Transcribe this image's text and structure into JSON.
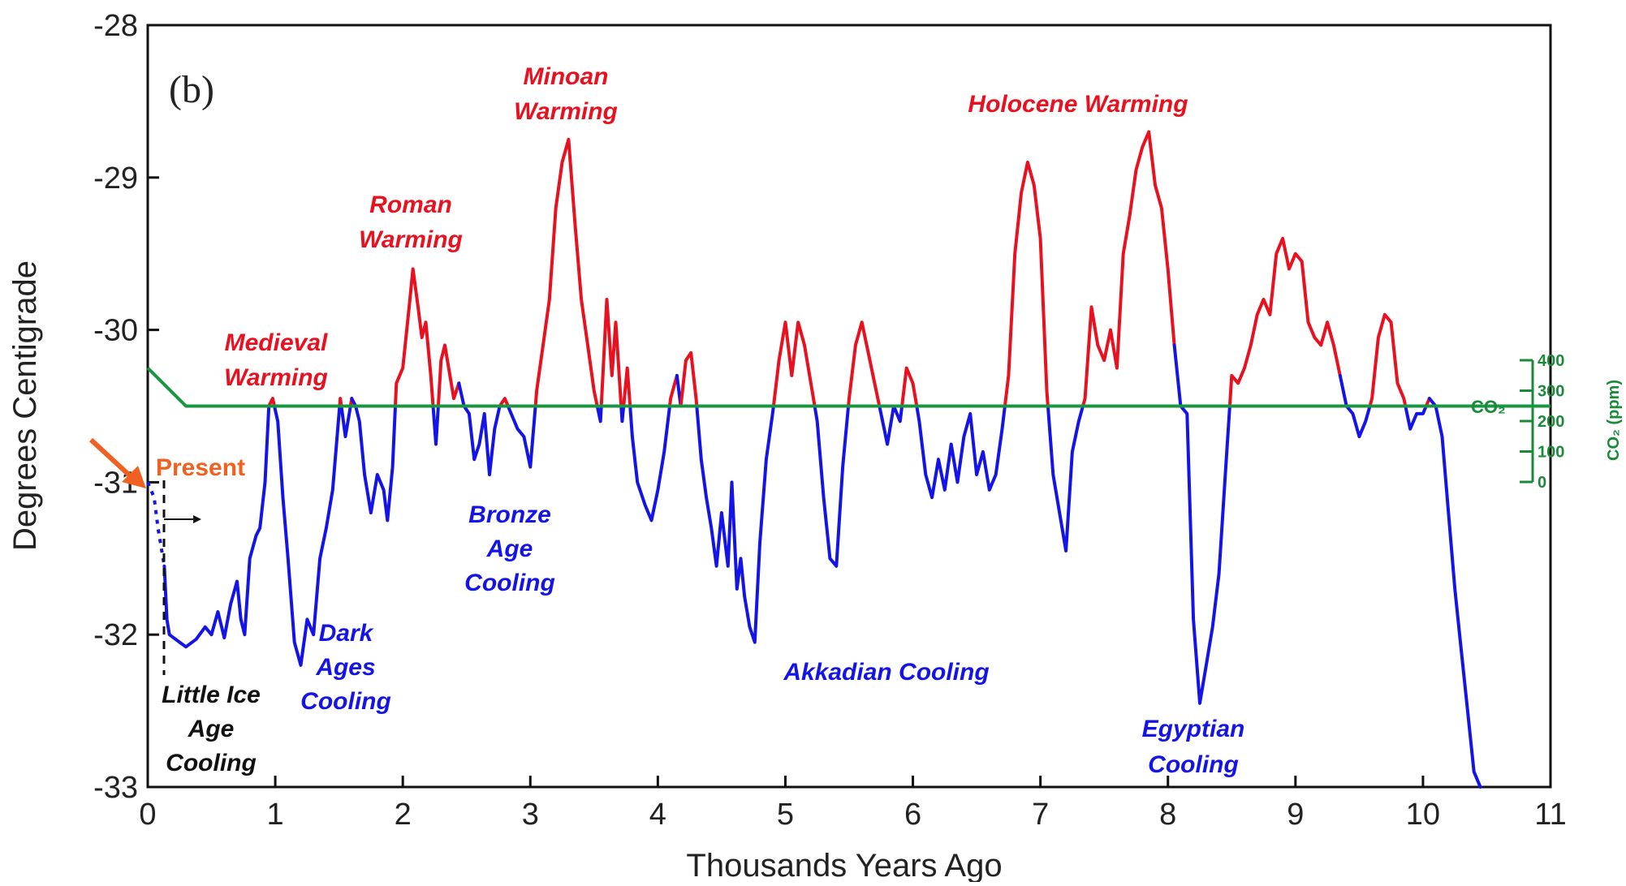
{
  "chart_data": {
    "type": "line",
    "panel_label": "(b)",
    "xlabel": "Thousands Years Ago",
    "ylabel": "Degrees Centigrade",
    "xlim": [
      0,
      11
    ],
    "ylim": [
      -33,
      -28
    ],
    "x_ticks": [
      "0",
      "1",
      "2",
      "3",
      "4",
      "5",
      "6",
      "7",
      "8",
      "9",
      "10",
      "11"
    ],
    "y_ticks": [
      "-28",
      "-29",
      "-30",
      "-31",
      "-32",
      "-33"
    ],
    "threshold": -30.5,
    "colors": {
      "warm": "#e8111f",
      "cool": "#1414e6",
      "co2": "#1a9641",
      "present": "#f06020",
      "black": "#111111"
    },
    "series": [
      {
        "name": "temperature",
        "points": [
          [
            0.13,
            -31.55
          ],
          [
            0.15,
            -31.9
          ],
          [
            0.17,
            -32.0
          ],
          [
            0.25,
            -32.05
          ],
          [
            0.3,
            -32.08
          ],
          [
            0.38,
            -32.03
          ],
          [
            0.45,
            -31.95
          ],
          [
            0.5,
            -32.0
          ],
          [
            0.55,
            -31.85
          ],
          [
            0.6,
            -32.02
          ],
          [
            0.65,
            -31.8
          ],
          [
            0.7,
            -31.65
          ],
          [
            0.73,
            -31.9
          ],
          [
            0.76,
            -32.0
          ],
          [
            0.8,
            -31.5
          ],
          [
            0.85,
            -31.35
          ],
          [
            0.88,
            -31.3
          ],
          [
            0.92,
            -31.0
          ],
          [
            0.95,
            -30.5
          ],
          [
            0.98,
            -30.45
          ],
          [
            1.02,
            -30.6
          ],
          [
            1.06,
            -31.1
          ],
          [
            1.1,
            -31.5
          ],
          [
            1.15,
            -32.05
          ],
          [
            1.2,
            -32.2
          ],
          [
            1.25,
            -31.9
          ],
          [
            1.3,
            -32.0
          ],
          [
            1.35,
            -31.5
          ],
          [
            1.4,
            -31.3
          ],
          [
            1.45,
            -31.05
          ],
          [
            1.48,
            -30.75
          ],
          [
            1.51,
            -30.45
          ],
          [
            1.55,
            -30.7
          ],
          [
            1.6,
            -30.45
          ],
          [
            1.63,
            -30.5
          ],
          [
            1.66,
            -30.6
          ],
          [
            1.7,
            -30.95
          ],
          [
            1.75,
            -31.2
          ],
          [
            1.8,
            -30.95
          ],
          [
            1.85,
            -31.05
          ],
          [
            1.88,
            -31.25
          ],
          [
            1.92,
            -30.9
          ],
          [
            1.95,
            -30.35
          ],
          [
            2.0,
            -30.25
          ],
          [
            2.05,
            -29.85
          ],
          [
            2.08,
            -29.6
          ],
          [
            2.12,
            -29.85
          ],
          [
            2.15,
            -30.05
          ],
          [
            2.18,
            -29.95
          ],
          [
            2.22,
            -30.3
          ],
          [
            2.26,
            -30.75
          ],
          [
            2.3,
            -30.2
          ],
          [
            2.33,
            -30.1
          ],
          [
            2.36,
            -30.25
          ],
          [
            2.4,
            -30.45
          ],
          [
            2.44,
            -30.35
          ],
          [
            2.48,
            -30.5
          ],
          [
            2.52,
            -30.55
          ],
          [
            2.56,
            -30.85
          ],
          [
            2.6,
            -30.75
          ],
          [
            2.64,
            -30.55
          ],
          [
            2.68,
            -30.95
          ],
          [
            2.72,
            -30.65
          ],
          [
            2.76,
            -30.5
          ],
          [
            2.8,
            -30.45
          ],
          [
            2.85,
            -30.55
          ],
          [
            2.9,
            -30.65
          ],
          [
            2.95,
            -30.7
          ],
          [
            3.0,
            -30.9
          ],
          [
            3.05,
            -30.4
          ],
          [
            3.1,
            -30.1
          ],
          [
            3.15,
            -29.8
          ],
          [
            3.2,
            -29.2
          ],
          [
            3.25,
            -28.9
          ],
          [
            3.3,
            -28.75
          ],
          [
            3.35,
            -29.3
          ],
          [
            3.4,
            -29.8
          ],
          [
            3.45,
            -30.1
          ],
          [
            3.5,
            -30.4
          ],
          [
            3.55,
            -30.6
          ],
          [
            3.6,
            -29.8
          ],
          [
            3.64,
            -30.3
          ],
          [
            3.67,
            -29.95
          ],
          [
            3.72,
            -30.6
          ],
          [
            3.76,
            -30.25
          ],
          [
            3.8,
            -30.7
          ],
          [
            3.84,
            -31.0
          ],
          [
            3.9,
            -31.15
          ],
          [
            3.95,
            -31.25
          ],
          [
            4.0,
            -31.05
          ],
          [
            4.05,
            -30.8
          ],
          [
            4.1,
            -30.45
          ],
          [
            4.15,
            -30.3
          ],
          [
            4.18,
            -30.5
          ],
          [
            4.22,
            -30.2
          ],
          [
            4.26,
            -30.15
          ],
          [
            4.3,
            -30.45
          ],
          [
            4.34,
            -30.85
          ],
          [
            4.38,
            -31.1
          ],
          [
            4.42,
            -31.3
          ],
          [
            4.46,
            -31.55
          ],
          [
            4.5,
            -31.2
          ],
          [
            4.55,
            -31.55
          ],
          [
            4.58,
            -31.0
          ],
          [
            4.62,
            -31.7
          ],
          [
            4.65,
            -31.5
          ],
          [
            4.68,
            -31.75
          ],
          [
            4.72,
            -31.95
          ],
          [
            4.76,
            -32.05
          ],
          [
            4.8,
            -31.4
          ],
          [
            4.85,
            -30.85
          ],
          [
            4.9,
            -30.55
          ],
          [
            4.95,
            -30.2
          ],
          [
            5.0,
            -29.95
          ],
          [
            5.05,
            -30.3
          ],
          [
            5.1,
            -29.95
          ],
          [
            5.15,
            -30.1
          ],
          [
            5.2,
            -30.35
          ],
          [
            5.25,
            -30.6
          ],
          [
            5.3,
            -31.1
          ],
          [
            5.35,
            -31.5
          ],
          [
            5.4,
            -31.55
          ],
          [
            5.45,
            -30.9
          ],
          [
            5.5,
            -30.45
          ],
          [
            5.55,
            -30.1
          ],
          [
            5.6,
            -29.95
          ],
          [
            5.65,
            -30.15
          ],
          [
            5.7,
            -30.35
          ],
          [
            5.75,
            -30.55
          ],
          [
            5.8,
            -30.75
          ],
          [
            5.85,
            -30.5
          ],
          [
            5.9,
            -30.6
          ],
          [
            5.95,
            -30.25
          ],
          [
            6.0,
            -30.35
          ],
          [
            6.05,
            -30.6
          ],
          [
            6.1,
            -30.95
          ],
          [
            6.15,
            -31.1
          ],
          [
            6.2,
            -30.85
          ],
          [
            6.25,
            -31.05
          ],
          [
            6.3,
            -30.75
          ],
          [
            6.35,
            -31.0
          ],
          [
            6.4,
            -30.7
          ],
          [
            6.45,
            -30.55
          ],
          [
            6.5,
            -30.95
          ],
          [
            6.55,
            -30.8
          ],
          [
            6.6,
            -31.05
          ],
          [
            6.65,
            -30.95
          ],
          [
            6.7,
            -30.65
          ],
          [
            6.75,
            -30.3
          ],
          [
            6.8,
            -29.5
          ],
          [
            6.85,
            -29.1
          ],
          [
            6.9,
            -28.9
          ],
          [
            6.95,
            -29.05
          ],
          [
            7.0,
            -29.4
          ],
          [
            7.05,
            -30.4
          ],
          [
            7.1,
            -30.95
          ],
          [
            7.15,
            -31.2
          ],
          [
            7.2,
            -31.45
          ],
          [
            7.25,
            -30.8
          ],
          [
            7.3,
            -30.6
          ],
          [
            7.35,
            -30.45
          ],
          [
            7.4,
            -29.85
          ],
          [
            7.45,
            -30.1
          ],
          [
            7.5,
            -30.2
          ],
          [
            7.55,
            -30.0
          ],
          [
            7.6,
            -30.25
          ],
          [
            7.65,
            -29.5
          ],
          [
            7.7,
            -29.25
          ],
          [
            7.75,
            -28.95
          ],
          [
            7.8,
            -28.8
          ],
          [
            7.85,
            -28.7
          ],
          [
            7.9,
            -29.05
          ],
          [
            7.95,
            -29.2
          ],
          [
            8.0,
            -29.6
          ],
          [
            8.05,
            -30.1
          ],
          [
            8.1,
            -30.5
          ],
          [
            8.15,
            -30.55
          ],
          [
            8.2,
            -31.9
          ],
          [
            8.25,
            -32.45
          ],
          [
            8.3,
            -32.2
          ],
          [
            8.35,
            -31.95
          ],
          [
            8.4,
            -31.6
          ],
          [
            8.45,
            -30.95
          ],
          [
            8.5,
            -30.3
          ],
          [
            8.55,
            -30.35
          ],
          [
            8.6,
            -30.25
          ],
          [
            8.65,
            -30.1
          ],
          [
            8.7,
            -29.9
          ],
          [
            8.75,
            -29.8
          ],
          [
            8.8,
            -29.9
          ],
          [
            8.85,
            -29.5
          ],
          [
            8.9,
            -29.4
          ],
          [
            8.95,
            -29.6
          ],
          [
            9.0,
            -29.5
          ],
          [
            9.05,
            -29.55
          ],
          [
            9.1,
            -29.95
          ],
          [
            9.15,
            -30.05
          ],
          [
            9.2,
            -30.1
          ],
          [
            9.25,
            -29.95
          ],
          [
            9.3,
            -30.1
          ],
          [
            9.35,
            -30.3
          ],
          [
            9.4,
            -30.5
          ],
          [
            9.45,
            -30.55
          ],
          [
            9.5,
            -30.7
          ],
          [
            9.55,
            -30.6
          ],
          [
            9.6,
            -30.45
          ],
          [
            9.65,
            -30.05
          ],
          [
            9.7,
            -29.9
          ],
          [
            9.75,
            -29.95
          ],
          [
            9.8,
            -30.35
          ],
          [
            9.85,
            -30.45
          ],
          [
            9.9,
            -30.65
          ],
          [
            9.95,
            -30.55
          ],
          [
            10.0,
            -30.55
          ],
          [
            10.05,
            -30.45
          ],
          [
            10.1,
            -30.5
          ],
          [
            10.15,
            -30.7
          ],
          [
            10.2,
            -31.2
          ],
          [
            10.25,
            -31.7
          ],
          [
            10.3,
            -32.1
          ],
          [
            10.35,
            -32.5
          ],
          [
            10.4,
            -32.9
          ],
          [
            10.45,
            -33.0
          ]
        ]
      },
      {
        "name": "present-dotted",
        "style": "dotted",
        "points": [
          [
            0.0,
            -31.0
          ],
          [
            0.05,
            -31.1
          ],
          [
            0.08,
            -31.3
          ],
          [
            0.11,
            -31.45
          ],
          [
            0.13,
            -31.55
          ]
        ]
      },
      {
        "name": "CO₂",
        "points": [
          [
            0.0,
            -30.25
          ],
          [
            0.3,
            -30.5
          ],
          [
            11.0,
            -30.5
          ]
        ]
      }
    ],
    "annotations": {
      "medieval_1": "Medieval",
      "medieval_2": "Warming",
      "roman_1": "Roman",
      "roman_2": "Warming",
      "minoan_1": "Minoan",
      "minoan_2": "Warming",
      "holocene": "Holocene Warming",
      "bronze_1": "Bronze",
      "bronze_2": "Age",
      "bronze_3": "Cooling",
      "dark_1": "Dark",
      "dark_2": "Ages",
      "dark_3": "Cooling",
      "akkadian": "Akkadian Cooling",
      "egyptian_1": "Egyptian",
      "egyptian_2": "Cooling",
      "lia_1": "Little Ice",
      "lia_2": "Age",
      "lia_3": "Cooling",
      "present": "Present"
    },
    "co2_axis": {
      "label": "CO₂",
      "title": "CO₂ (ppm)",
      "ticks": [
        "400",
        "300",
        "200",
        "100",
        "0"
      ]
    }
  }
}
